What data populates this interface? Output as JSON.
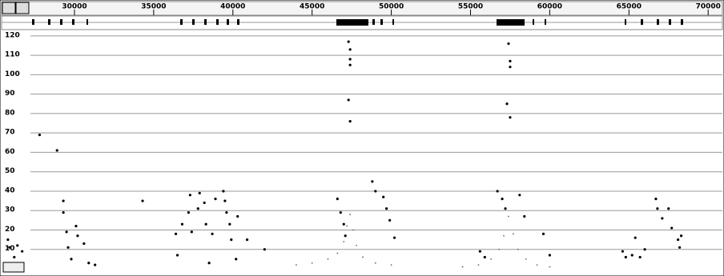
{
  "chart_data": {
    "type": "scatter",
    "xlim": [
      25300,
      71000
    ],
    "xticks": [
      30000,
      35000,
      40000,
      45000,
      50000,
      55000,
      60000,
      65000,
      70000
    ],
    "ylim": [
      0,
      122
    ],
    "yticks": [
      10,
      20,
      30,
      40,
      50,
      60,
      70,
      80,
      90,
      100,
      110,
      120
    ],
    "grid": true,
    "series": [
      {
        "color": "#000000",
        "x": [
          25800,
          25900,
          26200,
          26400,
          26700,
          27800,
          28900,
          29300,
          29300,
          29500,
          29600,
          29800,
          30100,
          30200,
          30600,
          30900,
          31300,
          34300,
          36400,
          36500,
          36800,
          37200,
          37300,
          37400,
          37800,
          37900,
          38200,
          38300,
          38500,
          38700,
          38900,
          39400,
          39500,
          39600,
          39800,
          39900,
          40200,
          40300,
          40900,
          42000,
          46600,
          46800,
          47000,
          47100,
          47300,
          47400,
          47400,
          47400,
          47300,
          47400,
          48800,
          49000,
          49500,
          49700,
          49900,
          50200,
          55600,
          55900,
          56700,
          57000,
          57200,
          57400,
          57500,
          57500,
          57300,
          57500,
          58100,
          58400,
          59600,
          60000,
          64600,
          64800,
          65200,
          65400,
          65700,
          66000,
          66700,
          66800,
          67100,
          67500,
          67700,
          68100,
          68200,
          68300
        ],
        "values": [
          15,
          11,
          6,
          12,
          9,
          69,
          61,
          35,
          29,
          19,
          11,
          5,
          22,
          17,
          13,
          3,
          2,
          35,
          18,
          7,
          23,
          29,
          38,
          19,
          31,
          39,
          34,
          23,
          3,
          18,
          36,
          40,
          35,
          29,
          23,
          15,
          5,
          27,
          15,
          10,
          36,
          29,
          23,
          17,
          117,
          113,
          108,
          105,
          87,
          76,
          45,
          40,
          37,
          31,
          25,
          16,
          9,
          6,
          40,
          36,
          31,
          116,
          107,
          104,
          85,
          78,
          38,
          27,
          18,
          7,
          9,
          6,
          7,
          16,
          6,
          10,
          36,
          31,
          26,
          31,
          21,
          15,
          11,
          17
        ]
      },
      {
        "color": "#666666",
        "x": [
          44000,
          45000,
          46000,
          46600,
          47000,
          47200,
          47400,
          47600,
          47800,
          48200,
          49000,
          50000,
          54500,
          55500,
          56300,
          56800,
          57100,
          57400,
          57700,
          58000,
          58500,
          59200,
          60000
        ],
        "values": [
          2,
          3,
          5,
          8,
          14,
          22,
          28,
          20,
          12,
          6,
          3,
          2,
          1,
          2,
          5,
          10,
          17,
          27,
          18,
          10,
          5,
          2,
          1
        ]
      }
    ]
  }
}
